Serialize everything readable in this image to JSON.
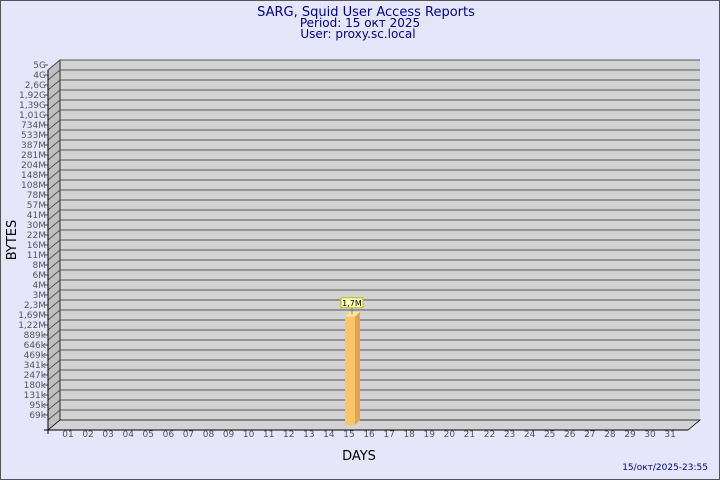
{
  "header": {
    "title": "SARG, Squid User Access Reports",
    "period": "Period: 15 окт 2025",
    "user": "User: proxy.sc.local"
  },
  "footer": {
    "timestamp": "15/окт/2025-23:55"
  },
  "chart_data": {
    "type": "bar",
    "xlabel": "DAYS",
    "ylabel": "BYTES",
    "yscale": "log",
    "grid": true,
    "y_tick_labels": [
      "5G",
      "4G",
      "2,6G",
      "1,92G",
      "1,39G",
      "1,01G",
      "734M",
      "533M",
      "387M",
      "281M",
      "204M",
      "148M",
      "108M",
      "78M",
      "57M",
      "41M",
      "30M",
      "22M",
      "16M",
      "11M",
      "8M",
      "6M",
      "4M",
      "3M",
      "2,3M",
      "1,69M",
      "1,22M",
      "889k",
      "646k",
      "469k",
      "341k",
      "247k",
      "180k",
      "131k",
      "95k",
      "69k"
    ],
    "categories": [
      "01",
      "02",
      "03",
      "04",
      "05",
      "06",
      "07",
      "08",
      "09",
      "10",
      "11",
      "12",
      "13",
      "14",
      "15",
      "16",
      "17",
      "18",
      "19",
      "20",
      "21",
      "22",
      "23",
      "24",
      "25",
      "26",
      "27",
      "28",
      "29",
      "30",
      "31"
    ],
    "series": [
      {
        "values": {
          "15": 1700000
        },
        "labels": {
          "15": "1,7M"
        },
        "color": "#f9c46a"
      }
    ]
  }
}
